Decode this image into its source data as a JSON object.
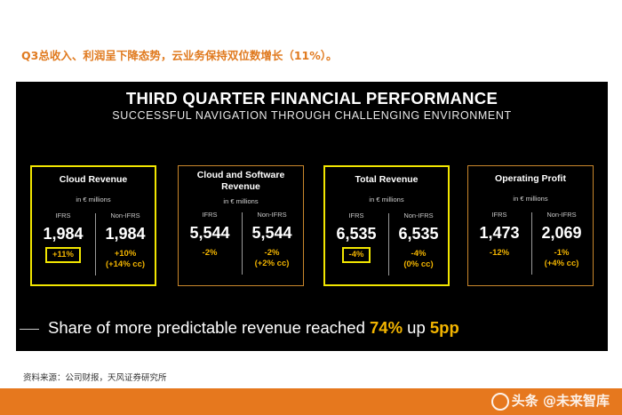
{
  "heading": "Q3总收入、利润呈下降态势，云业务保持双位数增长（11%）。",
  "slide": {
    "title": "THIRD QUARTER FINANCIAL PERFORMANCE",
    "subtitle": "SUCCESSFUL NAVIGATION THROUGH CHALLENGING ENVIRONMENT",
    "cards": [
      {
        "title": "Cloud Revenue",
        "unit": "in € millions",
        "left": {
          "label": "IFRS",
          "value": "1,984",
          "change": "+11%"
        },
        "right": {
          "label": "Non-IFRS",
          "value": "1,984",
          "change": "+10%",
          "change2": "(+14% cc)"
        }
      },
      {
        "title": "Cloud and Software Revenue",
        "unit": "in € millions",
        "left": {
          "label": "IFRS",
          "value": "5,544",
          "change": "-2%"
        },
        "right": {
          "label": "Non-IFRS",
          "value": "5,544",
          "change": "-2%",
          "change2": "(+2% cc)"
        }
      },
      {
        "title": "Total Revenue",
        "unit": "in € millions",
        "left": {
          "label": "IFRS",
          "value": "6,535",
          "change": "-4%"
        },
        "right": {
          "label": "Non-IFRS",
          "value": "6,535",
          "change": "-4%",
          "change2": "(0% cc)"
        }
      },
      {
        "title": "Operating Profit",
        "unit": "in € millions",
        "left": {
          "label": "IFRS",
          "value": "1,473",
          "change": "-12%"
        },
        "right": {
          "label": "Non-IFRS",
          "value": "2,069",
          "change": "-1%",
          "change2": "(+4% cc)"
        }
      }
    ],
    "share": {
      "prefix": "Share of more predictable revenue reached ",
      "pct": "74%",
      "middle": " up ",
      "pp": "5pp"
    }
  },
  "source": "资料来源：公司财报，天风证券研究所",
  "watermark": "头条 @未来智库",
  "colors": {
    "heading": "#e07a1f",
    "accent": "#f2b400",
    "highlight": "#f2e600",
    "footer": "#e6781e",
    "card_border": "#c9872b"
  }
}
